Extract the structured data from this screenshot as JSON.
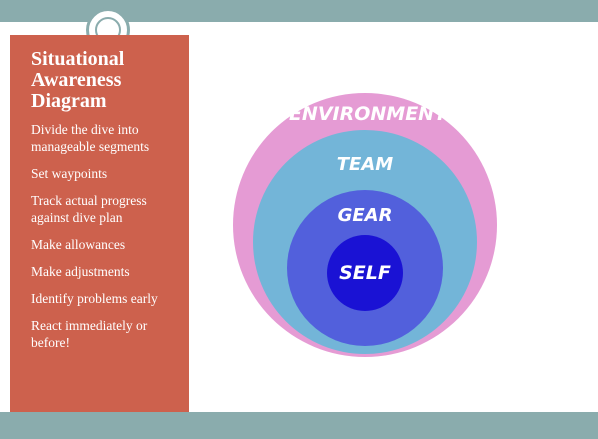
{
  "sidebar": {
    "title_lines": [
      "Situational",
      "Awareness",
      "Diagram"
    ],
    "items": [
      "Divide the dive into manageable segments",
      "Set waypoints",
      "Track actual progress against  dive plan",
      "Make allowances",
      "Make adjustments",
      "Identify problems early",
      "React immediately or before!"
    ]
  },
  "diagram": {
    "rings": [
      {
        "label": "ENVIRONMENT",
        "color": "#e59bd4"
      },
      {
        "label": "TEAM",
        "color": "#73b5d8"
      },
      {
        "label": "GEAR",
        "color": "#5260dc"
      },
      {
        "label": "SELF",
        "color": "#1a12d4"
      }
    ]
  },
  "colors": {
    "panel": "#cd614d",
    "band": "#8aacad"
  }
}
